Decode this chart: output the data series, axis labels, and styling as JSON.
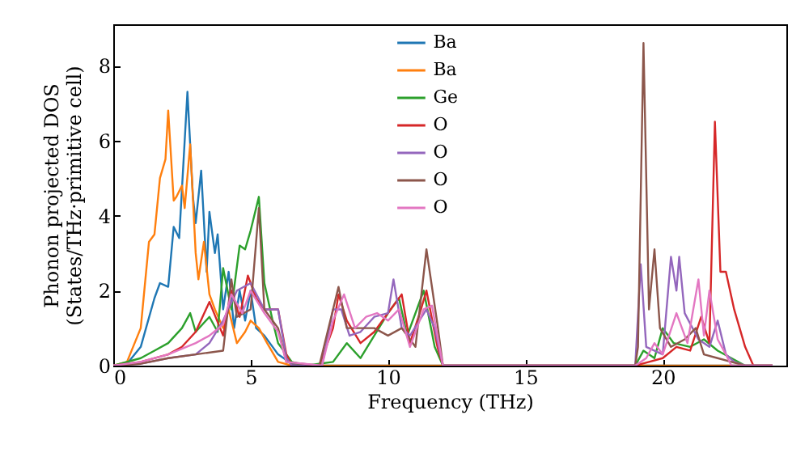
{
  "chart_data": {
    "type": "line",
    "xlabel": "Frequency (THz)",
    "ylabel": "Phonon projected DOS\n(States/THz·primitive cell)",
    "xlim": [
      0,
      24.5
    ],
    "ylim": [
      0,
      9.1
    ],
    "xticks": [
      0,
      5,
      10,
      15,
      20
    ],
    "yticks": [
      0,
      2,
      4,
      6,
      8
    ],
    "legend": "top",
    "grid": false,
    "marker": "none",
    "line_style": "solid",
    "series": [
      {
        "name": "Ba",
        "color": "#1f77b4",
        "x": [
          0,
          0.5,
          1,
          1.5,
          1.7,
          2,
          2.2,
          2.4,
          2.7,
          2.9,
          3,
          3.2,
          3.4,
          3.5,
          3.7,
          3.8,
          4,
          4.2,
          4.4,
          4.6,
          4.8,
          5,
          5.2,
          5.5,
          6,
          6.5,
          7,
          24
        ],
        "values": [
          0,
          0.05,
          0.5,
          1.8,
          2.2,
          2.1,
          3.7,
          3.4,
          7.3,
          4.5,
          3.8,
          5.2,
          2.5,
          4.1,
          3,
          3.5,
          1.5,
          2.5,
          1,
          2,
          1.2,
          2,
          1,
          0.8,
          0.3,
          0.05,
          0,
          0
        ]
      },
      {
        "name": "Ba",
        "color": "#ff7f0e",
        "x": [
          0,
          0.5,
          1,
          1.3,
          1.5,
          1.7,
          1.9,
          2,
          2.2,
          2.3,
          2.5,
          2.6,
          2.8,
          3,
          3.1,
          3.3,
          3.5,
          3.7,
          4,
          4.2,
          4.5,
          4.8,
          5,
          5.3,
          5.6,
          6,
          6.5,
          24
        ],
        "values": [
          0,
          0.1,
          1,
          3.3,
          3.5,
          5,
          5.5,
          6.8,
          4.4,
          4.5,
          4.8,
          4.2,
          5.9,
          3,
          2.3,
          3.3,
          1.9,
          1.5,
          1,
          1.5,
          0.6,
          0.9,
          1.2,
          1,
          0.6,
          0.1,
          0,
          0
        ]
      },
      {
        "name": "Ge",
        "color": "#2ca02c",
        "x": [
          0,
          1,
          1.5,
          2,
          2.5,
          2.8,
          3,
          3.5,
          3.8,
          4,
          4.3,
          4.6,
          4.8,
          5,
          5.3,
          5.5,
          5.8,
          6,
          6.5,
          7,
          8,
          8.5,
          9,
          9.5,
          10,
          10.4,
          10.7,
          11.3,
          11.7,
          12,
          19,
          19.3,
          19.7,
          20,
          20.4,
          21,
          21.5,
          22,
          22.5,
          23,
          24
        ],
        "values": [
          0,
          0.2,
          0.4,
          0.6,
          1,
          1.4,
          0.9,
          1.3,
          0.9,
          2.6,
          1.5,
          3.2,
          3.1,
          3.6,
          4.5,
          2.2,
          1.2,
          0.6,
          0.1,
          0,
          0.1,
          0.6,
          0.2,
          0.8,
          1.4,
          1.8,
          0.8,
          2,
          0.5,
          0,
          0,
          0.4,
          0.2,
          1,
          0.6,
          0.5,
          0.7,
          0.4,
          0.2,
          0,
          0
        ]
      },
      {
        "name": "O",
        "color": "#d62728",
        "x": [
          0,
          1,
          2,
          2.5,
          3,
          3.5,
          4,
          4.3,
          4.6,
          4.9,
          5.2,
          5.5,
          6,
          6.3,
          6.5,
          7.5,
          8,
          8.2,
          8.5,
          9,
          9.5,
          10.2,
          10.5,
          10.8,
          11.2,
          11.4,
          11.8,
          12,
          19,
          19.5,
          20,
          20.5,
          21,
          21.4,
          21.7,
          21.9,
          22.1,
          22.3,
          22.6,
          23,
          23.3,
          24
        ],
        "values": [
          0,
          0.1,
          0.3,
          0.5,
          0.9,
          1.7,
          0.8,
          2,
          1.3,
          2.4,
          1.8,
          1.5,
          1.5,
          0.3,
          0,
          0,
          1,
          1.9,
          1.2,
          0.6,
          0.9,
          1.6,
          1.9,
          0.6,
          1.5,
          2,
          0.5,
          0,
          0,
          0.1,
          0.2,
          0.5,
          0.4,
          1.3,
          0.6,
          6.5,
          2.5,
          2.5,
          1.5,
          0.5,
          0,
          0
        ]
      },
      {
        "name": "O",
        "color": "#9467bd",
        "x": [
          0,
          1,
          2,
          3,
          3.5,
          4,
          4.5,
          5,
          5.5,
          6,
          6.3,
          6.5,
          7.6,
          8,
          8.3,
          8.6,
          9,
          9.5,
          10,
          10.2,
          10.5,
          10.8,
          11.4,
          11.7,
          12,
          19,
          19.2,
          19.4,
          20,
          20.3,
          20.5,
          20.6,
          20.8,
          21.3,
          21.7,
          22,
          22.3,
          22.6,
          23,
          24
        ],
        "values": [
          0,
          0.05,
          0.2,
          0.3,
          0.6,
          1.2,
          2,
          2.2,
          1.5,
          1.5,
          0.2,
          0,
          0,
          1.5,
          1.5,
          0.8,
          0.9,
          1.3,
          1.4,
          2.3,
          1,
          0.8,
          1.5,
          1,
          0,
          0,
          2.7,
          0.5,
          0.3,
          2.9,
          2,
          2.9,
          1.4,
          0.7,
          0.5,
          1.2,
          0.3,
          0.1,
          0,
          0
        ]
      },
      {
        "name": "O",
        "color": "#8c564b",
        "x": [
          0,
          1,
          2,
          3,
          4,
          4.3,
          4.5,
          5,
          5.3,
          5.5,
          6,
          6.3,
          7.5,
          8,
          8.2,
          8.5,
          9,
          9.5,
          10,
          10.5,
          11,
          11.4,
          11.8,
          12,
          19,
          19.1,
          19.3,
          19.5,
          19.7,
          19.9,
          20.3,
          20.8,
          21.2,
          21.5,
          22,
          22.5,
          23,
          24
        ],
        "values": [
          0,
          0.05,
          0.2,
          0.3,
          0.4,
          2.3,
          1.3,
          1.5,
          4.2,
          1.5,
          1,
          0.1,
          0,
          1.5,
          2.1,
          1,
          1,
          1,
          0.8,
          1,
          0.5,
          3.1,
          1.1,
          0,
          0,
          0.5,
          8.6,
          1.5,
          3.1,
          1,
          0.5,
          0.7,
          1,
          0.3,
          0.2,
          0.1,
          0,
          0
        ]
      },
      {
        "name": "O",
        "color": "#e377c2",
        "x": [
          0,
          1,
          2,
          3,
          3.5,
          4,
          4.3,
          4.7,
          5,
          5.5,
          6,
          6.3,
          7.6,
          8,
          8.4,
          8.8,
          9.2,
          9.6,
          10,
          10.4,
          10.8,
          11.3,
          11.6,
          12,
          19,
          19.4,
          19.7,
          20,
          20.5,
          20.9,
          21.3,
          21.5,
          21.7,
          22,
          22.3,
          22.5,
          24
        ],
        "values": [
          0,
          0.1,
          0.3,
          0.6,
          0.8,
          1.1,
          1.9,
          1.4,
          2,
          1.4,
          0.9,
          0.1,
          0,
          1.2,
          1.9,
          1,
          1.3,
          1.4,
          1.2,
          1.5,
          0.5,
          1.5,
          1.6,
          0,
          0,
          0.2,
          0.6,
          0.3,
          1.4,
          0.6,
          2.3,
          0.8,
          2,
          0.7,
          0.3,
          0,
          0
        ]
      }
    ]
  }
}
